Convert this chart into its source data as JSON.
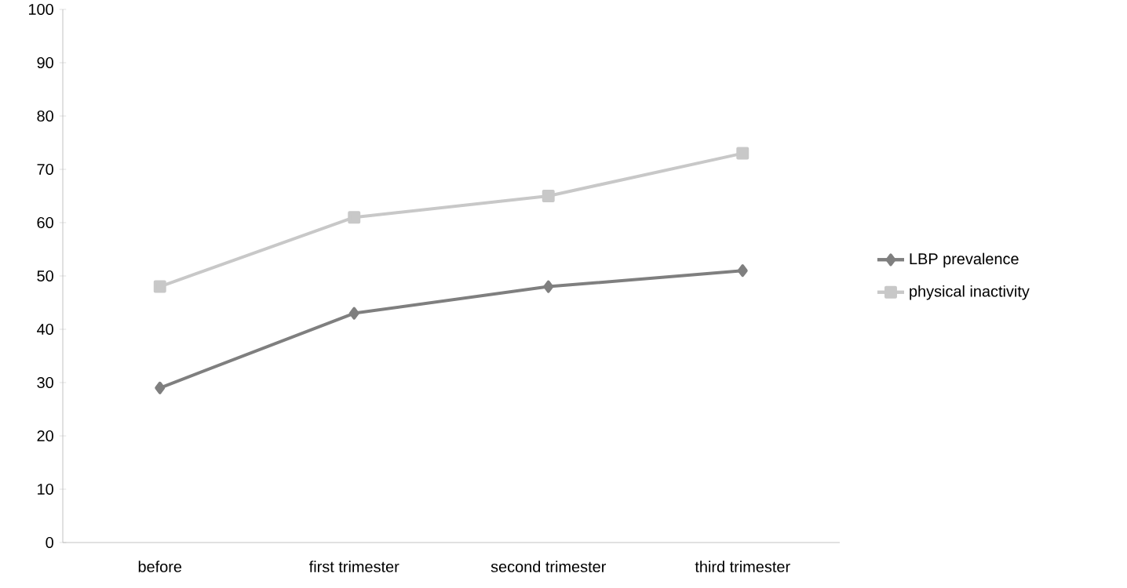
{
  "chart_data": {
    "type": "line",
    "categories": [
      "before",
      "first trimester",
      "second trimester",
      "third trimester"
    ],
    "series": [
      {
        "name": "LBP prevalence",
        "color": "#7f7f7f",
        "values": [
          29,
          43,
          48,
          51
        ],
        "marker": "diamond"
      },
      {
        "name": "physical inactivity",
        "color": "#c8c8c8",
        "values": [
          48,
          61,
          65,
          73
        ],
        "marker": "square"
      }
    ],
    "ylim": [
      0,
      100
    ],
    "yticks": [
      0,
      10,
      20,
      30,
      40,
      50,
      60,
      70,
      80,
      90,
      100
    ],
    "legend": "right",
    "grid": false
  }
}
